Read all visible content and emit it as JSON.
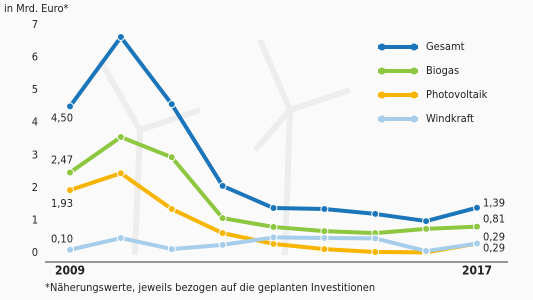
{
  "chart_data": {
    "type": "line",
    "y_label": "in Mrd. Euro*",
    "footnote": "*Näherungswerte, jeweils bezogen auf die geplanten Investitionen",
    "categories": [
      "2009",
      null,
      null,
      null,
      null,
      null,
      null,
      null,
      "2017"
    ],
    "ylim": [
      0,
      7
    ],
    "yticks": [
      0,
      1,
      2,
      3,
      4,
      5,
      6,
      7
    ],
    "legend": "top-right",
    "series": [
      {
        "name": "Gesamt",
        "color": "#1b75bb",
        "values": [
          4.5,
          6.63,
          4.57,
          2.06,
          1.38,
          1.35,
          1.2,
          0.98,
          1.39
        ],
        "value_labels": [
          "4,50",
          null,
          null,
          null,
          null,
          null,
          null,
          null,
          "1,39"
        ]
      },
      {
        "name": "Biogas",
        "color": "#8dc63f",
        "values": [
          2.47,
          3.56,
          2.94,
          1.07,
          0.8,
          0.67,
          0.61,
          0.74,
          0.81
        ],
        "value_labels": [
          "2,47",
          null,
          null,
          null,
          null,
          null,
          null,
          null,
          "0,81"
        ]
      },
      {
        "name": "Photovoltaik",
        "color": "#f7b500",
        "values": [
          1.93,
          2.45,
          1.35,
          0.61,
          0.28,
          0.12,
          0.03,
          0.02,
          0.29
        ],
        "value_labels": [
          "1,93",
          null,
          null,
          null,
          null,
          null,
          null,
          null,
          "0,29"
        ]
      },
      {
        "name": "Windkraft",
        "color": "#a6cdea",
        "values": [
          0.1,
          0.46,
          0.12,
          0.25,
          0.48,
          0.46,
          0.45,
          0.06,
          0.29
        ],
        "value_labels": [
          "0,10",
          null,
          null,
          null,
          null,
          null,
          null,
          null,
          "0,29"
        ]
      }
    ]
  }
}
